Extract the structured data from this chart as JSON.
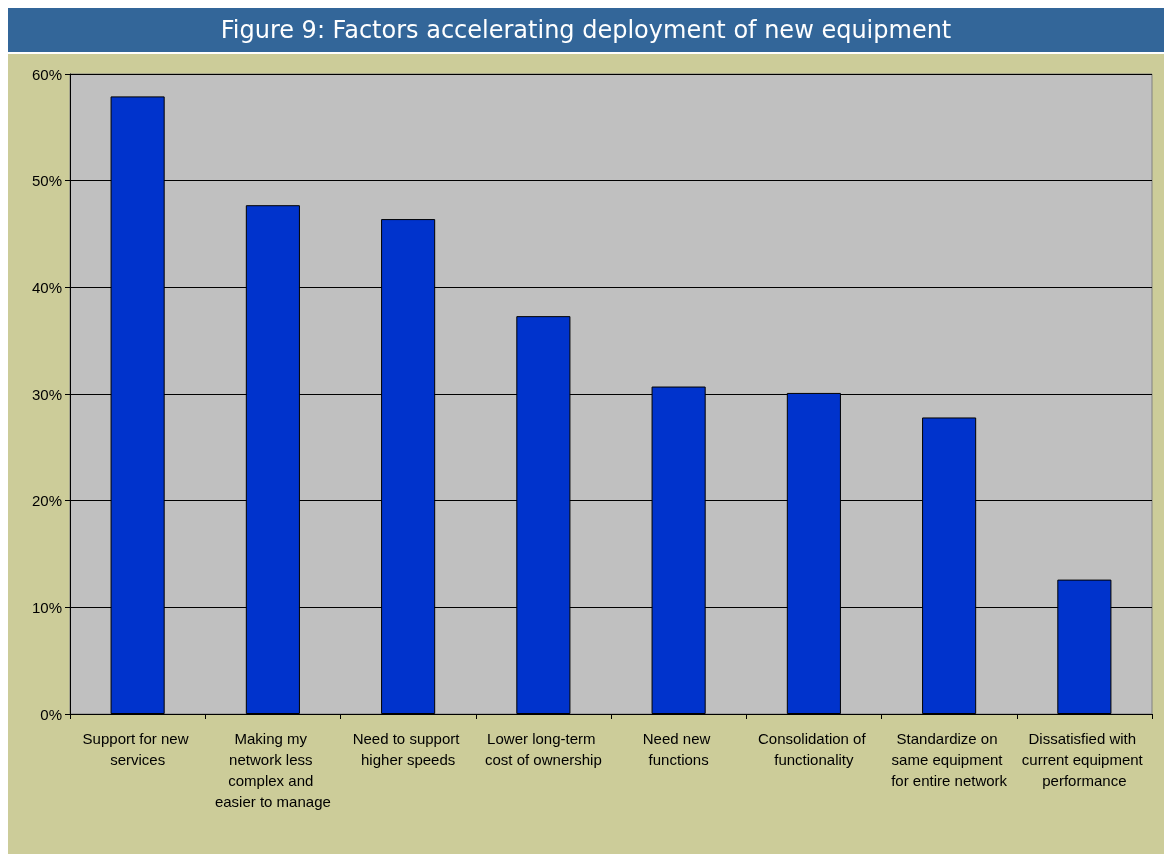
{
  "chart_data": {
    "type": "bar",
    "title": "Figure 9: Factors accelerating deployment of new equipment",
    "categories": [
      "Support for new services",
      "Making my network less complex and easier to manage",
      "Need to support higher speeds",
      "Lower long-term cost of ownership",
      "Need new functions",
      "Consolidation of functionality",
      "Standardize on same equipment for entire network",
      "Dissatisfied with current equipment performance"
    ],
    "values": [
      57.9,
      47.7,
      46.4,
      37.3,
      30.7,
      30.1,
      27.8,
      12.6
    ],
    "color": "#0033cc",
    "ylim": [
      0,
      60
    ],
    "yticks": [
      {
        "value": 0,
        "label": "0%"
      },
      {
        "value": 10,
        "label": "10%"
      },
      {
        "value": 20,
        "label": "20%"
      },
      {
        "value": 30,
        "label": "30%"
      },
      {
        "value": 40,
        "label": "40%"
      },
      {
        "value": 50,
        "label": "50%"
      },
      {
        "value": 60,
        "label": "60%"
      }
    ],
    "grid": "y"
  }
}
